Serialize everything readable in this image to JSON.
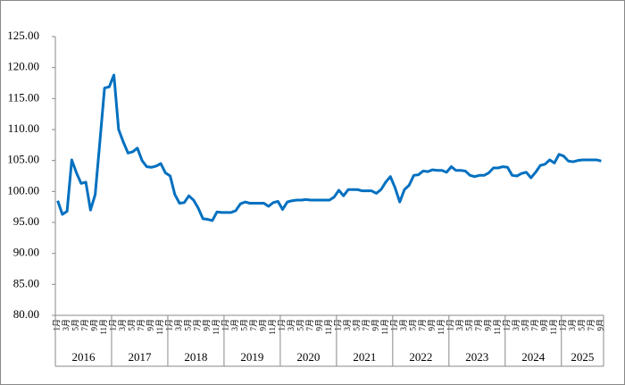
{
  "chart_data": {
    "type": "line",
    "categories": [
      "1月",
      null,
      "3月",
      null,
      "5月",
      null,
      "7月",
      null,
      "9月",
      null,
      "11月",
      null,
      "1月",
      null,
      "3月",
      null,
      "5月",
      null,
      "7月",
      null,
      "9月",
      null,
      "11月",
      null,
      "1月",
      null,
      "3月",
      null,
      "5月",
      null,
      "7月",
      null,
      "9月",
      null,
      "11月",
      null,
      "1月",
      null,
      "3月",
      null,
      "5月",
      null,
      "7月",
      null,
      "9月",
      null,
      "11月",
      null,
      "1月",
      null,
      "3月",
      null,
      "5月",
      null,
      "7月",
      null,
      "9月",
      null,
      "11月",
      null,
      "1月",
      null,
      "3月",
      null,
      "5月",
      null,
      "7月",
      null,
      "9月",
      null,
      "11月",
      null,
      "1月",
      null,
      "3月",
      null,
      "5月",
      null,
      "7月",
      null,
      "9月",
      null,
      "11月",
      null,
      "1月",
      null,
      "3月",
      null,
      "5月",
      null,
      "7月",
      null,
      "9月",
      null,
      "11月",
      null,
      "1月",
      null,
      "3月",
      null,
      "5月",
      null,
      "7月",
      null,
      "9月",
      null,
      "11月",
      null,
      "1月",
      null,
      "3月",
      null,
      "5月",
      null,
      "7月",
      null,
      "9月"
    ],
    "groups": [
      "2016",
      "2017",
      "2018",
      "2019",
      "2020",
      "2021",
      "2022",
      "2023",
      "2024",
      "2025"
    ],
    "values": [
      98.5,
      96.3,
      96.8,
      105.1,
      103,
      101.3,
      101.5,
      97,
      99.5,
      108,
      116.7,
      116.9,
      118.8,
      110,
      108,
      106.2,
      106.4,
      107,
      105,
      104,
      103.9,
      104.1,
      104.5,
      103,
      102.5,
      99.5,
      98.1,
      98.2,
      99.3,
      98.6,
      97.3,
      95.6,
      95.5,
      95.3,
      96.7,
      96.6,
      96.6,
      96.6,
      96.9,
      98,
      98.3,
      98.1,
      98.1,
      98.1,
      98.1,
      97.6,
      98.2,
      98.4,
      97.1,
      98.3,
      98.5,
      98.6,
      98.6,
      98.7,
      98.6,
      98.6,
      98.6,
      98.6,
      98.6,
      99.1,
      100.2,
      99.3,
      100.3,
      100.3,
      100.3,
      100.1,
      100.1,
      100.1,
      99.7,
      100.3,
      101.5,
      102.4,
      100.6,
      98.3,
      100.3,
      101,
      102.6,
      102.7,
      103.3,
      103.2,
      103.5,
      103.4,
      103.4,
      103.1,
      104,
      103.4,
      103.4,
      103.3,
      102.6,
      102.4,
      102.6,
      102.6,
      103,
      103.8,
      103.8,
      104,
      103.9,
      102.6,
      102.5,
      102.9,
      103.1,
      102.2,
      103.1,
      104.2,
      104.4,
      105.1,
      104.6,
      106,
      105.7,
      104.9,
      104.8,
      105,
      105.1,
      105.1,
      105.1,
      105.1,
      104.9
    ],
    "color": "#0070c0",
    "ylim": [
      80,
      125
    ],
    "yticks": [
      {
        "value": 80,
        "label": "80.00"
      },
      {
        "value": 85,
        "label": "85.00"
      },
      {
        "value": 90,
        "label": "90.00"
      },
      {
        "value": 95,
        "label": "95.00"
      },
      {
        "value": 100,
        "label": "100.00"
      },
      {
        "value": 105,
        "label": "105.00"
      },
      {
        "value": 110,
        "label": "110.00"
      },
      {
        "value": 115,
        "label": "115.00"
      },
      {
        "value": 120,
        "label": "120.00"
      },
      {
        "value": 125,
        "label": "125.00"
      }
    ],
    "grid": false
  }
}
